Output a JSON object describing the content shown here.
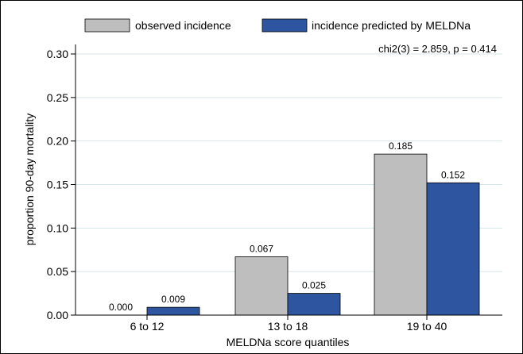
{
  "chart_data": {
    "type": "bar",
    "title": "",
    "xlabel": "MELDNa score quantiles",
    "ylabel": "proportion 90-day mortality",
    "ylim": [
      0,
      0.32
    ],
    "yticks": [
      "0.00",
      "0.05",
      "0.10",
      "0.15",
      "0.20",
      "0.25",
      "0.30"
    ],
    "grid": true,
    "legend_position": "top",
    "annotation": "chi2(3) = 2.859, p = 0.414",
    "categories": [
      "6 to 12",
      "13 to 18",
      "19 to 40"
    ],
    "series": [
      {
        "name": "observed incidence",
        "color": "#bebebe",
        "values": [
          0.0,
          0.067,
          0.185
        ],
        "labels": [
          "0.000",
          "0.067",
          "0.185"
        ]
      },
      {
        "name": "incidence predicted by MELDNa",
        "color": "#2e56a0",
        "values": [
          0.009,
          0.025,
          0.152
        ],
        "labels": [
          "0.009",
          "0.025",
          "0.152"
        ]
      }
    ]
  }
}
